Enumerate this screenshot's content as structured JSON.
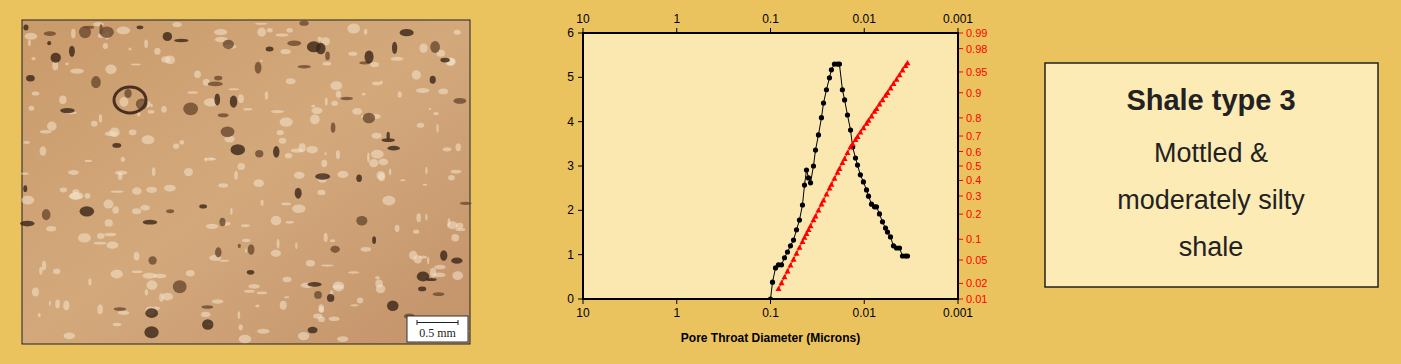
{
  "photo": {
    "scale_label": "0.5 mm"
  },
  "caption": {
    "title": "Shale type 3",
    "lines": [
      "Mottled &",
      "moderately silty",
      "shale"
    ]
  },
  "chart_data": {
    "type": "line",
    "log": "x",
    "x_label": "Pore Throat Diameter (Microns)",
    "xlim": [
      10,
      0.001
    ],
    "xticks": [
      10,
      1,
      0.1,
      0.01,
      0.001
    ],
    "ylim": [
      0,
      6
    ],
    "yticks": [
      0,
      1,
      2,
      3,
      4,
      5,
      6
    ],
    "y2lim": [
      0.01,
      0.99
    ],
    "y2ticks": [
      0.01,
      0.02,
      0.05,
      0.1,
      0.2,
      0.3,
      0.4,
      0.5,
      0.6,
      0.7,
      0.8,
      0.9,
      0.95,
      0.98,
      0.99
    ],
    "series": [
      {
        "color": "#000000",
        "marker": "circle",
        "line_style": "solid",
        "x": [
          0.1,
          0.0952,
          0.0884,
          0.0822,
          0.0763,
          0.0709,
          0.0659,
          0.0612,
          0.0568,
          0.0528,
          0.0491,
          0.0456,
          0.0434,
          0.0413,
          0.0393,
          0.0374,
          0.0348,
          0.0331,
          0.0308,
          0.0286,
          0.0272,
          0.0253,
          0.0235,
          0.0224,
          0.0208,
          0.0193,
          0.0184,
          0.0171,
          0.0162,
          0.0151,
          0.014,
          0.0133,
          0.0124,
          0.0118,
          0.011,
          0.0102,
          0.00946,
          0.00901,
          0.00837,
          0.00777,
          0.0074,
          0.00688,
          0.00639,
          0.00593,
          0.00565,
          0.00525,
          0.00488,
          0.00453,
          0.00421,
          0.00391,
          0.00363,
          0.00346
        ],
        "values": [
          0,
          0.38,
          0.7,
          0.77,
          0.77,
          0.93,
          1.06,
          1.2,
          1.33,
          1.56,
          1.78,
          2.12,
          2.57,
          2.91,
          2.73,
          2.62,
          3.0,
          3.36,
          3.7,
          4.09,
          4.42,
          4.72,
          4.99,
          5.17,
          5.3,
          5.3,
          5.3,
          4.72,
          4.49,
          4.15,
          3.81,
          3.43,
          3.18,
          3.02,
          2.8,
          2.64,
          2.46,
          2.32,
          2.14,
          2.08,
          2.08,
          1.92,
          1.74,
          1.6,
          1.51,
          1.4,
          1.2,
          1.15,
          1.15,
          0.97,
          0.97,
          0.97
        ]
      },
      {
        "color": "#ff0000",
        "marker": "triangle",
        "line_style": "solid",
        "axis": "y2",
        "x": [
          0.0822,
          0.0763,
          0.0709,
          0.0659,
          0.0612,
          0.0568,
          0.0528,
          0.0491,
          0.0456,
          0.0434,
          0.0413,
          0.0393,
          0.0374,
          0.0348,
          0.0331,
          0.0308,
          0.0286,
          0.0272,
          0.0253,
          0.0235,
          0.0224,
          0.0208,
          0.0193,
          0.0184,
          0.0171,
          0.0162,
          0.0151,
          0.014,
          0.0133,
          0.0124,
          0.0118,
          0.011,
          0.0102,
          0.00946,
          0.00901,
          0.00837,
          0.00777,
          0.0074,
          0.00688,
          0.00639,
          0.00593,
          0.00565,
          0.00525,
          0.00488,
          0.00453,
          0.00421,
          0.00391,
          0.00363,
          0.00346
        ],
        "values": [
          0.0158,
          0.0203,
          0.026,
          0.0328,
          0.0411,
          0.051,
          0.0629,
          0.0766,
          0.0928,
          0.105,
          0.118,
          0.132,
          0.147,
          0.172,
          0.19,
          0.219,
          0.252,
          0.274,
          0.31,
          0.348,
          0.373,
          0.413,
          0.454,
          0.481,
          0.522,
          0.55,
          0.591,
          0.63,
          0.649,
          0.677,
          0.696,
          0.722,
          0.747,
          0.771,
          0.787,
          0.808,
          0.829,
          0.841,
          0.86,
          0.876,
          0.891,
          0.9,
          0.913,
          0.925,
          0.935,
          0.944,
          0.953,
          0.96,
          0.964
        ]
      }
    ]
  }
}
